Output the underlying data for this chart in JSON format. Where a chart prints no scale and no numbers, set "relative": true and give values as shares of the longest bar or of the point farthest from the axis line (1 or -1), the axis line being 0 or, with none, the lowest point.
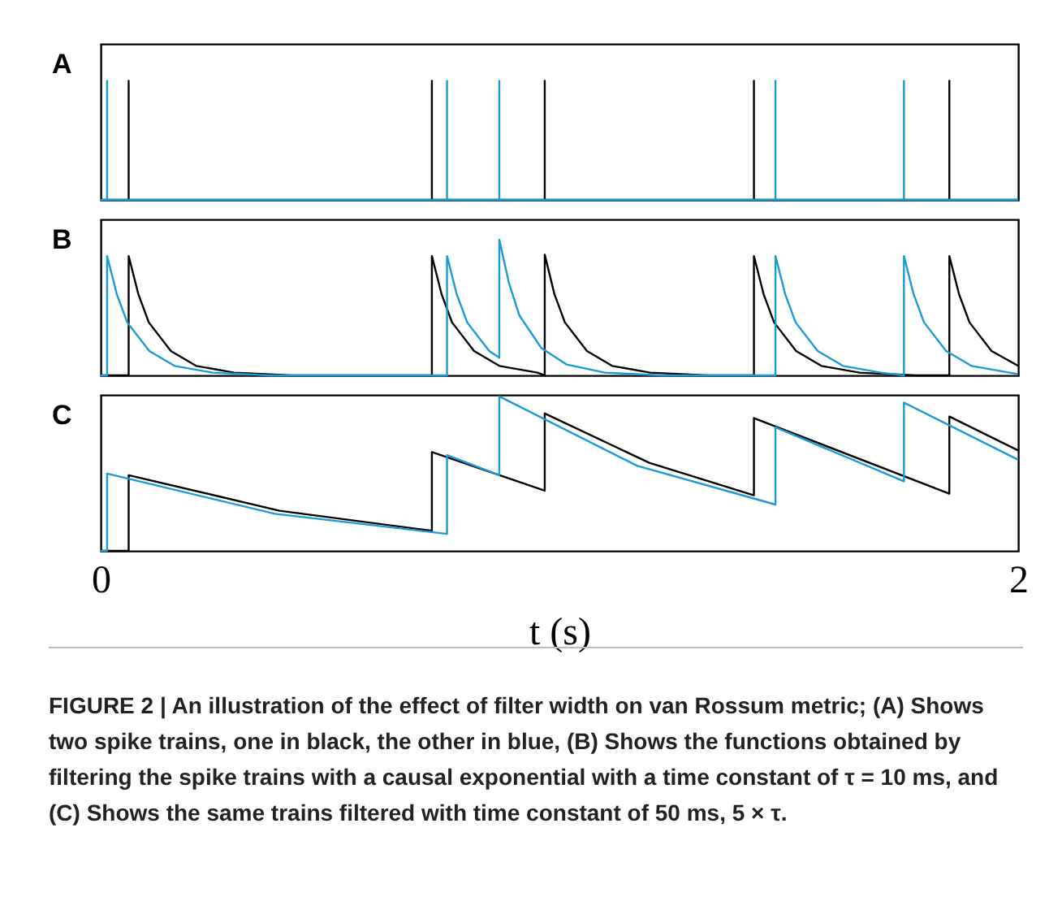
{
  "chart_data": [
    {
      "type": "line",
      "title": "A",
      "relative": true,
      "xlim": [
        0,
        2
      ],
      "tick_labels": false,
      "series": [
        {
          "color": "#000000",
          "x": [
            0,
            0.061,
            0.061,
            0.061,
            0.722,
            0.722,
            0.722,
            0.968,
            0.968,
            0.968,
            1.424,
            1.424,
            1.424,
            1.85,
            1.85,
            1.85,
            2
          ],
          "values": [
            0,
            0,
            1,
            0,
            0,
            1,
            0,
            0,
            1,
            0,
            0,
            1,
            0,
            0,
            1,
            0,
            0
          ]
        },
        {
          "color": "#1a9ad6",
          "x": [
            0,
            0.014,
            0.014,
            0.014,
            0.755,
            0.755,
            0.755,
            0.869,
            0.869,
            0.869,
            1.471,
            1.471,
            1.471,
            1.751,
            1.751,
            1.751,
            2
          ],
          "values": [
            0,
            0,
            1,
            0,
            0,
            1,
            0,
            0,
            1,
            0,
            0,
            1,
            0,
            0,
            1,
            0,
            0
          ]
        }
      ]
    },
    {
      "type": "line",
      "title": "B",
      "relative": true,
      "xlim": [
        0,
        2
      ],
      "tick_labels": false,
      "series": [
        {
          "color": "#000000",
          "x": [
            0,
            0.061,
            0.061,
            0.082,
            0.105,
            0.153,
            0.208,
            0.291,
            0.415,
            0.722,
            0.722,
            0.743,
            0.766,
            0.814,
            0.869,
            0.952,
            0.968,
            0.968,
            0.989,
            1.012,
            1.06,
            1.115,
            1.198,
            1.322,
            1.424,
            1.424,
            1.445,
            1.468,
            1.516,
            1.571,
            1.654,
            1.778,
            1.85,
            1.85,
            1.871,
            1.894,
            1.942,
            2
          ],
          "values": [
            0,
            0,
            0.88,
            0.6,
            0.39,
            0.18,
            0.07,
            0.02,
            0,
            0,
            0.88,
            0.6,
            0.39,
            0.18,
            0.07,
            0.02,
            0,
            0.89,
            0.6,
            0.39,
            0.18,
            0.07,
            0.02,
            0,
            0,
            0.88,
            0.6,
            0.39,
            0.18,
            0.07,
            0.02,
            0,
            0,
            0.88,
            0.6,
            0.39,
            0.18,
            0.07
          ]
        },
        {
          "color": "#1a9ad6",
          "x": [
            0,
            0.014,
            0.014,
            0.035,
            0.058,
            0.106,
            0.161,
            0.244,
            0.368,
            0.755,
            0.755,
            0.776,
            0.799,
            0.847,
            0.869,
            0.869,
            0.89,
            0.913,
            0.961,
            1.016,
            1.099,
            1.223,
            1.471,
            1.471,
            1.492,
            1.515,
            1.563,
            1.618,
            1.701,
            1.751,
            1.751,
            1.772,
            1.795,
            1.843,
            1.898,
            1.981,
            2
          ],
          "values": [
            0,
            0,
            0.88,
            0.6,
            0.39,
            0.18,
            0.07,
            0.02,
            0,
            0,
            0.88,
            0.6,
            0.39,
            0.18,
            0.13,
            1,
            0.68,
            0.44,
            0.2,
            0.08,
            0.02,
            0,
            0,
            0.88,
            0.6,
            0.39,
            0.18,
            0.07,
            0.02,
            0,
            0.88,
            0.6,
            0.39,
            0.18,
            0.07,
            0.02,
            0.01
          ]
        }
      ]
    },
    {
      "type": "line",
      "title": "C",
      "xlabel": "t (s)",
      "relative": true,
      "xlim": [
        0,
        2
      ],
      "xticks": [
        0,
        2
      ],
      "tick_labels": "x",
      "annotations": [
        "FIGURE 2 | An illustration of the effect of filter width on van Rossum metric; (A) Shows two spike trains, one in black, the other in blue, (B) Shows the functions obtained by filtering the spike trains with a causal exponential with a time constant of τ = 10 ms, and (C) Shows the same trains filtered with time constant of 50 ms, 5 × τ."
      ],
      "series": [
        {
          "color": "#000000",
          "x": [
            0,
            0.061,
            0.061,
            0.39,
            0.722,
            0.722,
            0.968,
            0.968,
            1.196,
            1.424,
            1.424,
            1.85,
            1.85,
            2
          ],
          "values": [
            0,
            0,
            0.49,
            0.26,
            0.13,
            0.64,
            0.39,
            0.89,
            0.57,
            0.36,
            0.86,
            0.37,
            0.87,
            0.65
          ]
        },
        {
          "color": "#1a9ad6",
          "x": [
            0,
            0.014,
            0.014,
            0.38,
            0.755,
            0.755,
            0.869,
            0.869,
            1.17,
            1.471,
            1.471,
            1.751,
            1.751,
            2
          ],
          "values": [
            0,
            0,
            0.5,
            0.24,
            0.11,
            0.62,
            0.49,
            1,
            0.55,
            0.3,
            0.8,
            0.45,
            0.96,
            0.59
          ]
        }
      ]
    }
  ]
}
